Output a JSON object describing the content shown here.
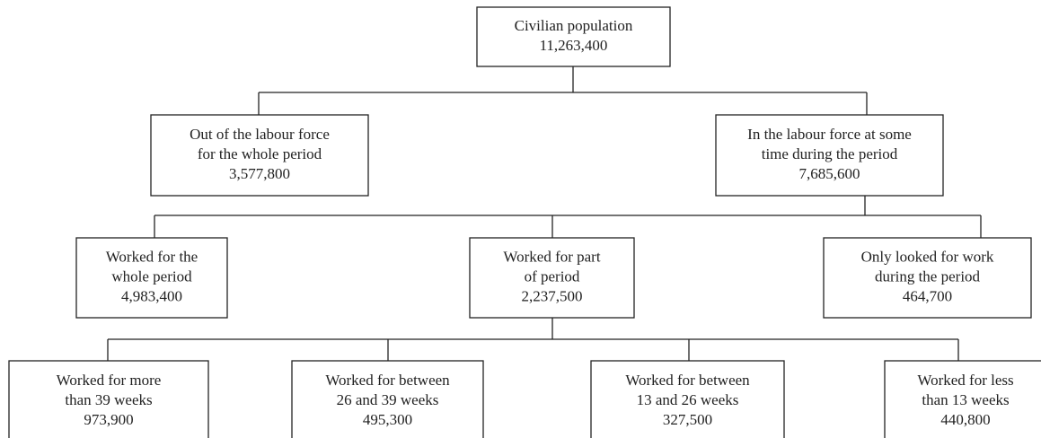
{
  "nodes": [
    {
      "lines": [
        "Civilian population"
      ],
      "value": "11,263,400"
    },
    {
      "lines": [
        "Out of the labour force",
        "for the whole period"
      ],
      "value": "3,577,800"
    },
    {
      "lines": [
        "In the labour force at some",
        "time during the period"
      ],
      "value": "7,685,600"
    },
    {
      "lines": [
        "Worked for the",
        "whole period"
      ],
      "value": "4,983,400"
    },
    {
      "lines": [
        "Worked for part",
        "of period"
      ],
      "value": "2,237,500"
    },
    {
      "lines": [
        "Only looked for work",
        "during the period"
      ],
      "value": "464,700"
    },
    {
      "lines": [
        "Worked for more",
        "than 39 weeks"
      ],
      "value": "973,900"
    },
    {
      "lines": [
        "Worked for between",
        "26 and 39 weeks"
      ],
      "value": "495,300"
    },
    {
      "lines": [
        "Worked for between",
        "13 and 26 weeks"
      ],
      "value": "327,500"
    },
    {
      "lines": [
        "Worked for less",
        "than 13 weeks"
      ],
      "value": "440,800"
    }
  ]
}
